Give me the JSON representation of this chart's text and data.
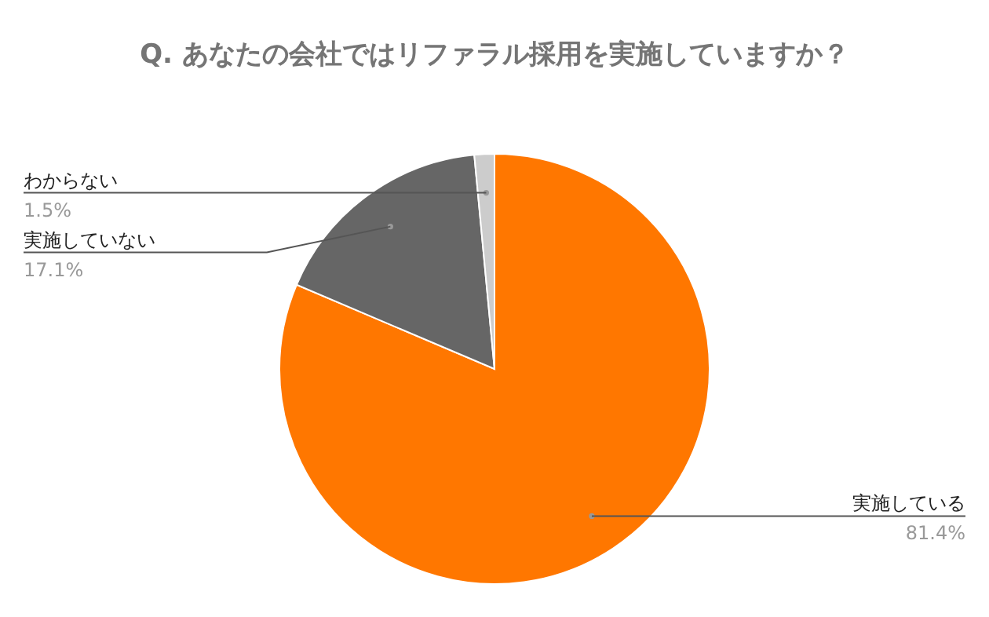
{
  "chart_data": {
    "type": "pie",
    "title": "Q. あなたの会社ではリファラル採用を実施していますか？",
    "categories": [
      "実施している",
      "実施していない",
      "わからない"
    ],
    "values": [
      81.4,
      17.1,
      1.5
    ],
    "colors": [
      "#ff7700",
      "#666666",
      "#cccccc"
    ],
    "value_labels": [
      "81.4%",
      "17.1%",
      "1.5%"
    ]
  }
}
